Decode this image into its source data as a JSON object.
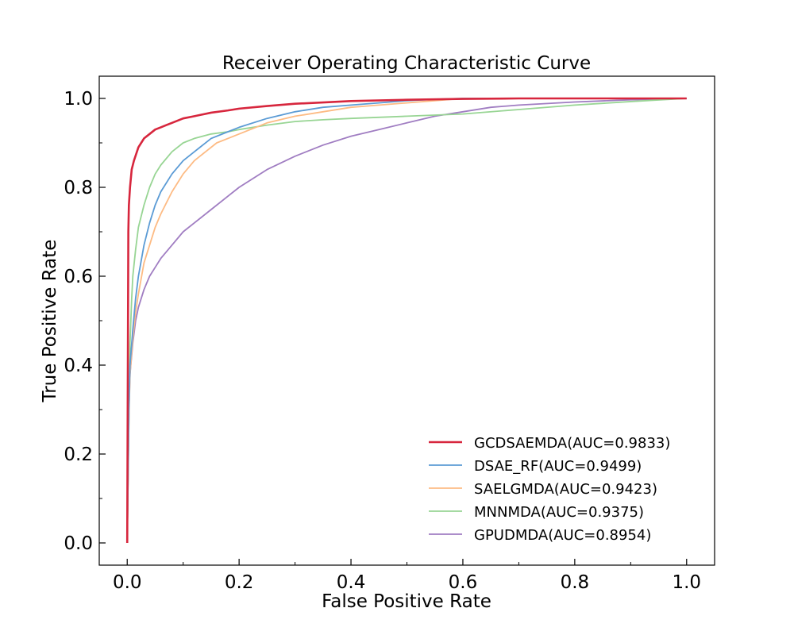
{
  "chart_data": {
    "type": "line",
    "title": "Receiver Operating Characteristic Curve",
    "xlabel": "False Positive Rate",
    "ylabel": "True Positive Rate",
    "xlim": [
      -0.05,
      1.05
    ],
    "ylim": [
      -0.05,
      1.05
    ],
    "xticks": [
      "0.0",
      "0.2",
      "0.4",
      "0.6",
      "0.8",
      "1.0"
    ],
    "yticks": [
      "0.0",
      "0.2",
      "0.4",
      "0.6",
      "0.8",
      "1.0"
    ],
    "grid": false,
    "legend_position": "lower-right",
    "series": [
      {
        "name": "GCDSAEMDA(AUC=0.9833)",
        "color": "#d7263d",
        "x": [
          0,
          0.001,
          0.002,
          0.003,
          0.005,
          0.008,
          0.012,
          0.016,
          0.02,
          0.025,
          0.03,
          0.04,
          0.05,
          0.06,
          0.07,
          0.08,
          0.1,
          0.12,
          0.15,
          0.18,
          0.2,
          0.25,
          0.3,
          0.35,
          0.4,
          0.5,
          0.6,
          0.7,
          0.8,
          0.9,
          1.0
        ],
        "y": [
          0,
          0.35,
          0.7,
          0.76,
          0.8,
          0.84,
          0.86,
          0.875,
          0.89,
          0.9,
          0.91,
          0.92,
          0.93,
          0.935,
          0.94,
          0.945,
          0.955,
          0.96,
          0.968,
          0.973,
          0.977,
          0.983,
          0.988,
          0.991,
          0.994,
          0.997,
          0.999,
          1.0,
          1.0,
          1.0,
          1.0
        ]
      },
      {
        "name": "DSAE_RF(AUC=0.9499)",
        "color": "#5b9bd5",
        "x": [
          0,
          0.003,
          0.005,
          0.01,
          0.015,
          0.02,
          0.03,
          0.04,
          0.05,
          0.06,
          0.08,
          0.1,
          0.12,
          0.15,
          0.18,
          0.2,
          0.25,
          0.3,
          0.35,
          0.4,
          0.45,
          0.5,
          0.55,
          0.6,
          0.7,
          0.8,
          0.9,
          1.0
        ],
        "y": [
          0,
          0.3,
          0.4,
          0.48,
          0.55,
          0.6,
          0.67,
          0.72,
          0.76,
          0.79,
          0.83,
          0.86,
          0.88,
          0.91,
          0.925,
          0.935,
          0.955,
          0.97,
          0.98,
          0.985,
          0.99,
          0.995,
          0.998,
          1.0,
          1.0,
          1.0,
          1.0,
          1.0
        ]
      },
      {
        "name": "SAELGMDA(AUC=0.9423)",
        "color": "#fdbb84",
        "x": [
          0,
          0.003,
          0.005,
          0.01,
          0.015,
          0.02,
          0.03,
          0.04,
          0.05,
          0.06,
          0.08,
          0.1,
          0.12,
          0.14,
          0.16,
          0.18,
          0.2,
          0.25,
          0.3,
          0.35,
          0.4,
          0.45,
          0.5,
          0.55,
          0.6,
          0.7,
          0.8,
          0.9,
          1.0
        ],
        "y": [
          0,
          0.28,
          0.38,
          0.46,
          0.52,
          0.56,
          0.63,
          0.67,
          0.71,
          0.74,
          0.79,
          0.83,
          0.86,
          0.88,
          0.9,
          0.91,
          0.92,
          0.945,
          0.96,
          0.97,
          0.98,
          0.985,
          0.99,
          0.995,
          1.0,
          1.0,
          1.0,
          1.0,
          1.0
        ]
      },
      {
        "name": "MNNMDA(AUC=0.9375)",
        "color": "#98d594",
        "x": [
          0,
          0.003,
          0.005,
          0.008,
          0.01,
          0.015,
          0.02,
          0.03,
          0.04,
          0.05,
          0.06,
          0.08,
          0.1,
          0.12,
          0.15,
          0.18,
          0.2,
          0.25,
          0.3,
          0.35,
          0.4,
          0.5,
          0.6,
          0.7,
          0.8,
          0.9,
          1.0
        ],
        "y": [
          0,
          0.28,
          0.45,
          0.55,
          0.6,
          0.66,
          0.71,
          0.76,
          0.8,
          0.83,
          0.85,
          0.88,
          0.9,
          0.91,
          0.92,
          0.925,
          0.93,
          0.94,
          0.948,
          0.952,
          0.955,
          0.96,
          0.965,
          0.975,
          0.985,
          0.993,
          1.0
        ]
      },
      {
        "name": "GPUDMDA(AUC=0.8954)",
        "color": "#a07dc2",
        "x": [
          0,
          0.003,
          0.005,
          0.01,
          0.015,
          0.02,
          0.03,
          0.04,
          0.05,
          0.06,
          0.08,
          0.1,
          0.12,
          0.15,
          0.18,
          0.2,
          0.25,
          0.3,
          0.35,
          0.4,
          0.45,
          0.5,
          0.55,
          0.6,
          0.65,
          0.7,
          0.8,
          0.9,
          1.0
        ],
        "y": [
          0,
          0.3,
          0.38,
          0.45,
          0.5,
          0.53,
          0.57,
          0.6,
          0.62,
          0.64,
          0.67,
          0.7,
          0.72,
          0.75,
          0.78,
          0.8,
          0.84,
          0.87,
          0.895,
          0.915,
          0.93,
          0.945,
          0.96,
          0.97,
          0.98,
          0.985,
          0.992,
          0.997,
          1.0
        ]
      }
    ]
  }
}
